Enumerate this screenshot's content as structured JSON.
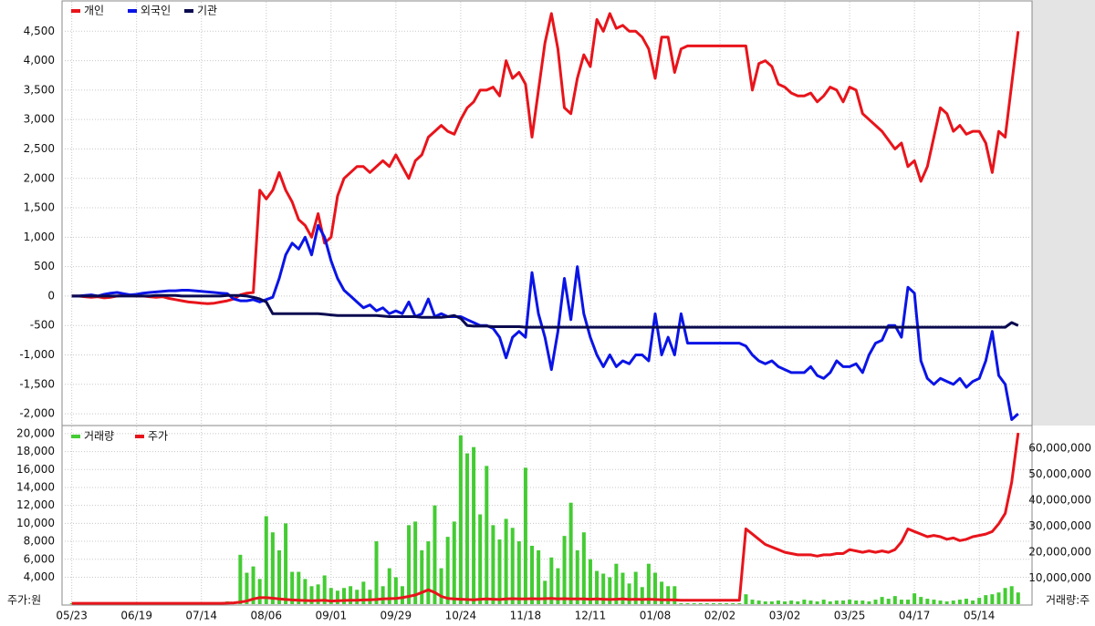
{
  "chart_data": [
    {
      "type": "line",
      "ylim": [
        -2200,
        5000
      ],
      "grid": true,
      "yticks": [
        {
          "value": 4500,
          "label": "4,500"
        },
        {
          "value": 4000,
          "label": "4,000"
        },
        {
          "value": 3500,
          "label": "3,500"
        },
        {
          "value": 3000,
          "label": "3,000"
        },
        {
          "value": 2500,
          "label": "2,500"
        },
        {
          "value": 2000,
          "label": "2,000"
        },
        {
          "value": 1500,
          "label": "1,500"
        },
        {
          "value": 1000,
          "label": "1,000"
        },
        500,
        0,
        -500,
        {
          "value": -1000,
          "label": "-1,000"
        },
        {
          "value": -1500,
          "label": "-1,500"
        },
        {
          "value": -2000,
          "label": "-2,000"
        }
      ],
      "series": [
        {
          "name": "개인",
          "color": "#e8141b",
          "values": [
            0,
            0,
            -10,
            -20,
            -10,
            -30,
            -20,
            0,
            10,
            10,
            0,
            0,
            -10,
            -20,
            -10,
            -40,
            -60,
            -80,
            -100,
            -110,
            -120,
            -130,
            -120,
            -100,
            -80,
            -50,
            20,
            50,
            60,
            1800,
            1650,
            1800,
            2100,
            1800,
            1600,
            1300,
            1200,
            1000,
            1400,
            900,
            1000,
            1700,
            2000,
            2100,
            2200,
            2200,
            2100,
            2200,
            2300,
            2200,
            2400,
            2200,
            2000,
            2300,
            2400,
            2700,
            2800,
            2900,
            2800,
            2750,
            3000,
            3200,
            3300,
            3500,
            3500,
            3550,
            3400,
            4000,
            3700,
            3800,
            3600,
            2700,
            3500,
            4300,
            4800,
            4200,
            3200,
            3100,
            3700,
            4100,
            3900,
            4700,
            4500,
            4800,
            4550,
            4600,
            4500,
            4500,
            4400,
            4200,
            3700,
            4400,
            4400,
            3800,
            4200,
            4250,
            4250,
            4250,
            4250,
            4250,
            4250,
            4250,
            4250,
            4250,
            4250,
            3500,
            3950,
            4000,
            3900,
            3600,
            3550,
            3450,
            3400,
            3400,
            3450,
            3300,
            3400,
            3550,
            3500,
            3300,
            3550,
            3500,
            3100,
            3000,
            2900,
            2800,
            2650,
            2500,
            2600,
            2200,
            2300,
            1950,
            2200,
            2700,
            3200,
            3100,
            2800,
            2900,
            2750,
            2800,
            2800,
            2600,
            2100,
            2800,
            2700,
            3600,
            4500
          ]
        },
        {
          "name": "외국인",
          "color": "#0a14e6",
          "values": [
            0,
            0,
            10,
            20,
            0,
            30,
            50,
            60,
            40,
            20,
            30,
            50,
            60,
            70,
            80,
            90,
            90,
            100,
            100,
            90,
            80,
            70,
            60,
            50,
            40,
            -50,
            -80,
            -80,
            -60,
            -100,
            -60,
            -20,
            300,
            700,
            900,
            800,
            1000,
            700,
            1200,
            1000,
            600,
            300,
            100,
            0,
            -100,
            -200,
            -150,
            -250,
            -200,
            -300,
            -250,
            -300,
            -100,
            -350,
            -300,
            -50,
            -350,
            -300,
            -350,
            -350,
            -350,
            -400,
            -450,
            -500,
            -500,
            -550,
            -700,
            -1050,
            -700,
            -600,
            -700,
            400,
            -300,
            -700,
            -1250,
            -600,
            300,
            -400,
            500,
            -300,
            -700,
            -1000,
            -1200,
            -1000,
            -1200,
            -1100,
            -1150,
            -1000,
            -1000,
            -1100,
            -300,
            -1000,
            -700,
            -1000,
            -300,
            -800,
            -800,
            -800,
            -800,
            -800,
            -800,
            -800,
            -800,
            -800,
            -850,
            -1000,
            -1100,
            -1150,
            -1100,
            -1200,
            -1250,
            -1300,
            -1300,
            -1300,
            -1200,
            -1350,
            -1400,
            -1300,
            -1100,
            -1200,
            -1200,
            -1150,
            -1300,
            -1000,
            -800,
            -750,
            -500,
            -500,
            -700,
            150,
            50,
            -1100,
            -1400,
            -1500,
            -1400,
            -1450,
            -1500,
            -1400,
            -1550,
            -1450,
            -1400,
            -1100,
            -600,
            -1350,
            -1500,
            -2100,
            -2000
          ]
        },
        {
          "name": "기관",
          "color": "#0a0a50",
          "values": [
            0,
            0,
            0,
            0,
            0,
            0,
            0,
            0,
            0,
            0,
            0,
            0,
            0,
            10,
            10,
            10,
            10,
            0,
            0,
            0,
            0,
            0,
            0,
            0,
            10,
            10,
            10,
            0,
            -20,
            -50,
            -100,
            -300,
            -300,
            -300,
            -300,
            -300,
            -300,
            -300,
            -300,
            -310,
            -320,
            -330,
            -330,
            -330,
            -330,
            -330,
            -330,
            -330,
            -340,
            -350,
            -350,
            -350,
            -350,
            -350,
            -360,
            -360,
            -360,
            -360,
            -350,
            -330,
            -380,
            -500,
            -510,
            -510,
            -510,
            -520,
            -520,
            -520,
            -520,
            -520,
            -530,
            -530,
            -530,
            -530,
            -530,
            -530,
            -530,
            -530,
            -530,
            -530,
            -530,
            -530,
            -530,
            -530,
            -530,
            -530,
            -530,
            -530,
            -530,
            -530,
            -530,
            -530,
            -530,
            -530,
            -530,
            -530,
            -530,
            -530,
            -530,
            -530,
            -530,
            -530,
            -530,
            -530,
            -530,
            -530,
            -530,
            -530,
            -530,
            -530,
            -530,
            -530,
            -530,
            -530,
            -530,
            -530,
            -530,
            -530,
            -530,
            -530,
            -530,
            -530,
            -530,
            -530,
            -530,
            -530,
            -530,
            -530,
            -530,
            -530,
            -530,
            -530,
            -530,
            -530,
            -530,
            -530,
            -530,
            -530,
            -530,
            -530,
            -530,
            -530,
            -530,
            -530,
            -530,
            -450,
            -500
          ]
        }
      ]
    },
    {
      "type": "bar_line",
      "ylim": [
        1000,
        20800
      ],
      "y2lim": [
        0,
        68500000
      ],
      "grid": true,
      "y_unit_label": "주가:원",
      "y2_unit_label": "거래량:주",
      "categories": [
        "05/23",
        null,
        null,
        null,
        null,
        null,
        null,
        null,
        null,
        null,
        "06/19",
        null,
        null,
        null,
        null,
        null,
        null,
        null,
        null,
        null,
        "07/14",
        null,
        null,
        null,
        null,
        null,
        null,
        null,
        null,
        null,
        "08/06",
        null,
        null,
        null,
        null,
        null,
        null,
        null,
        null,
        null,
        "09/01",
        null,
        null,
        null,
        null,
        null,
        null,
        null,
        null,
        null,
        "09/29",
        null,
        null,
        null,
        null,
        null,
        null,
        null,
        null,
        null,
        "10/24",
        null,
        null,
        null,
        null,
        null,
        null,
        null,
        null,
        null,
        "11/18",
        null,
        null,
        null,
        null,
        null,
        null,
        null,
        null,
        null,
        "12/11",
        null,
        null,
        null,
        null,
        null,
        null,
        null,
        null,
        null,
        "01/08",
        null,
        null,
        null,
        null,
        null,
        null,
        null,
        null,
        null,
        "02/02",
        null,
        null,
        null,
        null,
        null,
        null,
        null,
        null,
        null,
        "03/02",
        null,
        null,
        null,
        null,
        null,
        null,
        null,
        null,
        null,
        "03/25",
        null,
        null,
        null,
        null,
        null,
        null,
        null,
        null,
        null,
        "04/17",
        null,
        null,
        null,
        null,
        null,
        null,
        null,
        null,
        null,
        "05/14",
        null,
        null,
        null,
        null,
        null,
        null
      ],
      "yticks": [
        {
          "value": 20000,
          "label": "20,000"
        },
        {
          "value": 18000,
          "label": "18,000"
        },
        {
          "value": 16000,
          "label": "16,000"
        },
        {
          "value": 14000,
          "label": "14,000"
        },
        {
          "value": 12000,
          "label": "12,000"
        },
        {
          "value": 10000,
          "label": "10,000"
        },
        {
          "value": 8000,
          "label": "8,000"
        },
        {
          "value": 6000,
          "label": "6,000"
        },
        {
          "value": 4000,
          "label": "4,000"
        }
      ],
      "y2ticks": [
        {
          "value": 60000000,
          "label": "60,000,000"
        },
        {
          "value": 50000000,
          "label": "50,000,000"
        },
        {
          "value": 40000000,
          "label": "40,000,000"
        },
        {
          "value": 30000000,
          "label": "30,000,000"
        },
        {
          "value": 20000000,
          "label": "20,000,000"
        },
        {
          "value": 10000000,
          "label": "10,000,000"
        }
      ],
      "series": [
        {
          "name": "거래량",
          "color": "#44cc33",
          "kind": "bar",
          "values": [
            1100,
            1100,
            1100,
            1100,
            1100,
            1100,
            1100,
            1100,
            1100,
            1100,
            1100,
            1100,
            1100,
            1100,
            1100,
            1100,
            1100,
            1100,
            1100,
            1100,
            1100,
            1100,
            1100,
            1100,
            1300,
            1200,
            6500,
            4500,
            5200,
            3800,
            10800,
            9000,
            7000,
            10000,
            4600,
            4600,
            3800,
            3000,
            3200,
            4200,
            2800,
            2500,
            2800,
            3000,
            2600,
            3500,
            2600,
            8000,
            3000,
            5000,
            4000,
            3000,
            9800,
            10200,
            7000,
            8000,
            12000,
            5000,
            8500,
            10200,
            19800,
            17800,
            18500,
            11000,
            16400,
            9800,
            8200,
            10500,
            9500,
            8000,
            16200,
            7500,
            7000,
            3600,
            6200,
            5000,
            8600,
            12300,
            7000,
            9000,
            6000,
            4700,
            4400,
            4000,
            5500,
            4500,
            3300,
            4600,
            2900,
            5500,
            4500,
            3500,
            3000,
            3000,
            1100,
            1100,
            1100,
            1100,
            1100,
            1100,
            1100,
            1100,
            1100,
            1100,
            2100,
            1500,
            1400,
            1300,
            1300,
            1400,
            1300,
            1400,
            1300,
            1500,
            1400,
            1300,
            1500,
            1300,
            1400,
            1400,
            1500,
            1400,
            1400,
            1300,
            1500,
            1800,
            1600,
            1900,
            1500,
            1500,
            2200,
            1800,
            1600,
            1500,
            1400,
            1300,
            1400,
            1500,
            1600,
            1400,
            1700,
            2000,
            2100,
            2300,
            2800,
            3000,
            2300
          ]
        },
        {
          "name": "주가",
          "color": "#e8141b",
          "kind": "line",
          "axis": "y2",
          "values": [
            300000,
            300000,
            300000,
            300000,
            300000,
            300000,
            300000,
            300000,
            300000,
            300000,
            300000,
            300000,
            300000,
            300000,
            300000,
            300000,
            300000,
            300000,
            300000,
            300000,
            300000,
            300000,
            300000,
            300000,
            400000,
            500000,
            800000,
            1200000,
            2000000,
            2500000,
            2500000,
            2300000,
            2000000,
            1800000,
            1600000,
            1500000,
            1400000,
            1300000,
            1400000,
            1500000,
            1200000,
            1300000,
            1400000,
            1500000,
            1500000,
            1600000,
            1700000,
            1800000,
            2000000,
            2100000,
            2200000,
            2500000,
            3000000,
            3500000,
            4500000,
            5500000,
            4500000,
            3000000,
            2200000,
            2000000,
            1900000,
            1800000,
            1700000,
            1900000,
            2000000,
            1900000,
            1800000,
            2000000,
            2100000,
            2000000,
            2000000,
            2100000,
            2000000,
            2100000,
            2200000,
            2000000,
            2100000,
            2000000,
            2000000,
            2000000,
            1900000,
            2000000,
            1900000,
            1800000,
            1900000,
            2000000,
            1800000,
            1900000,
            1800000,
            1900000,
            1800000,
            1700000,
            1700000,
            1600000,
            1500000,
            1500000,
            1500000,
            1500000,
            1500000,
            1500000,
            1500000,
            1500000,
            1500000,
            1500000,
            29000000,
            27000000,
            25000000,
            23000000,
            22000000,
            21000000,
            20000000,
            19500000,
            19000000,
            19000000,
            19000000,
            18500000,
            19000000,
            19000000,
            19500000,
            19500000,
            21000000,
            20500000,
            20000000,
            20500000,
            20000000,
            20500000,
            20000000,
            21000000,
            24000000,
            29000000,
            28000000,
            27000000,
            26000000,
            26500000,
            26000000,
            25000000,
            25500000,
            24500000,
            25000000,
            26000000,
            26500000,
            27000000,
            28000000,
            31000000,
            35000000,
            47000000,
            66000000
          ]
        }
      ]
    }
  ]
}
